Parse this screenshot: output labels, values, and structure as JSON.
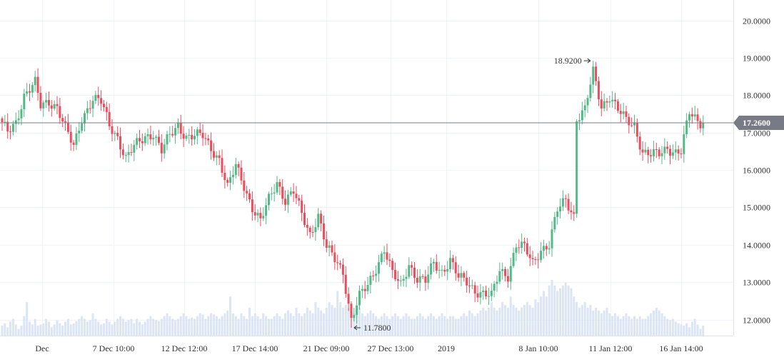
{
  "chart_data": {
    "type": "candlestick",
    "title": "",
    "ylim": [
      11.65,
      20.45
    ],
    "y_ticks": [
      "20.0000",
      "19.0000",
      "18.0000",
      "17.0000",
      "16.0000",
      "15.0000",
      "14.0000",
      "13.0000",
      "12.0000"
    ],
    "x_ticks": [
      "Dec",
      "7 Dec 10:00",
      "12 Dec 12:00",
      "17 Dec 14:00",
      "21 Dec 09:00",
      "27 Dec 13:00",
      "2019",
      "8 Jan 10:00",
      "11 Jan 12:00",
      "16 Jan 14:00"
    ],
    "last_price": 17.26,
    "last_price_label": "17.2600",
    "high_marker": {
      "value": 18.92,
      "label": "18.9200"
    },
    "low_marker": {
      "value": 11.78,
      "label": "11.7800"
    },
    "anchors": [
      [
        0,
        17.2
      ],
      [
        2,
        17.0
      ],
      [
        5,
        17.3
      ],
      [
        8,
        18.0
      ],
      [
        12,
        18.3
      ],
      [
        14,
        17.7
      ],
      [
        17,
        17.85
      ],
      [
        20,
        17.7
      ],
      [
        23,
        17.1
      ],
      [
        26,
        16.6
      ],
      [
        29,
        17.4
      ],
      [
        33,
        17.9
      ],
      [
        36,
        17.8
      ],
      [
        39,
        17.2
      ],
      [
        42,
        16.9
      ],
      [
        45,
        16.3
      ],
      [
        48,
        16.6
      ],
      [
        52,
        16.9
      ],
      [
        55,
        17.0
      ],
      [
        58,
        16.5
      ],
      [
        61,
        16.9
      ],
      [
        64,
        17.2
      ],
      [
        67,
        16.9
      ],
      [
        70,
        16.9
      ],
      [
        73,
        16.9
      ],
      [
        76,
        16.6
      ],
      [
        79,
        16.3
      ],
      [
        82,
        15.5
      ],
      [
        85,
        16.1
      ],
      [
        88,
        15.6
      ],
      [
        91,
        15.0
      ],
      [
        94,
        14.6
      ],
      [
        97,
        15.2
      ],
      [
        100,
        15.7
      ],
      [
        103,
        15.2
      ],
      [
        106,
        15.4
      ],
      [
        109,
        14.8
      ],
      [
        112,
        14.3
      ],
      [
        115,
        14.8
      ],
      [
        118,
        13.9
      ],
      [
        121,
        13.6
      ],
      [
        124,
        13.3
      ],
      [
        127,
        12.0
      ],
      [
        130,
        12.6
      ],
      [
        133,
        12.9
      ],
      [
        136,
        13.4
      ],
      [
        139,
        13.9
      ],
      [
        142,
        13.2
      ],
      [
        145,
        12.9
      ],
      [
        148,
        13.5
      ],
      [
        151,
        13.1
      ],
      [
        154,
        13.0
      ],
      [
        157,
        13.5
      ],
      [
        160,
        13.3
      ],
      [
        163,
        13.6
      ],
      [
        166,
        13.1
      ],
      [
        169,
        13.0
      ],
      [
        172,
        12.8
      ],
      [
        175,
        12.7
      ],
      [
        178,
        12.6
      ],
      [
        181,
        13.3
      ],
      [
        184,
        13.2
      ],
      [
        187,
        14.0
      ],
      [
        190,
        13.9
      ],
      [
        193,
        13.5
      ],
      [
        196,
        13.9
      ],
      [
        199,
        14.0
      ],
      [
        202,
        14.9
      ],
      [
        205,
        15.2
      ],
      [
        208,
        14.8
      ],
      [
        209,
        17.4
      ],
      [
        212,
        17.6
      ],
      [
        215,
        18.6
      ],
      [
        218,
        17.7
      ],
      [
        221,
        18.0
      ],
      [
        224,
        17.6
      ],
      [
        227,
        17.3
      ],
      [
        230,
        17.2
      ],
      [
        233,
        16.5
      ],
      [
        236,
        16.4
      ],
      [
        239,
        16.4
      ],
      [
        242,
        16.6
      ],
      [
        245,
        16.5
      ],
      [
        247,
        16.5
      ],
      [
        250,
        17.5
      ],
      [
        253,
        17.3
      ],
      [
        255,
        17.26
      ]
    ],
    "volume_max": 1.0,
    "volume_levels": [
      0.18,
      0.22,
      0.15,
      0.25,
      0.3,
      0.2,
      0.12,
      0.18,
      0.35,
      0.6,
      0.25,
      0.2,
      0.3,
      0.18,
      0.2,
      0.22,
      0.3,
      0.25,
      0.15,
      0.2,
      0.28,
      0.22,
      0.18,
      0.25,
      0.3,
      0.2,
      0.22,
      0.26,
      0.3,
      0.35,
      0.3,
      0.25,
      0.28,
      0.4,
      0.3,
      0.25,
      0.2,
      0.22,
      0.3,
      0.25,
      0.2,
      0.25,
      0.3,
      0.35,
      0.3,
      0.25,
      0.28,
      0.3,
      0.22,
      0.3,
      0.25,
      0.2,
      0.25,
      0.3,
      0.35,
      0.3,
      0.28,
      0.26,
      0.3,
      0.35,
      0.4,
      0.35,
      0.3,
      0.28,
      0.3,
      0.35,
      0.4,
      0.35,
      0.3,
      0.32,
      0.3,
      0.35,
      0.4,
      0.38,
      0.3,
      0.35,
      0.4,
      0.38,
      0.35,
      0.3,
      0.35,
      0.4,
      0.45,
      0.7,
      0.4,
      0.35,
      0.3,
      0.4,
      0.35,
      0.3,
      0.5,
      0.35,
      0.4,
      0.35,
      0.3,
      0.4,
      0.35,
      0.3,
      0.3,
      0.35,
      0.4,
      0.35,
      0.3,
      0.4,
      0.45,
      0.4,
      0.35,
      0.5,
      0.4,
      0.35,
      0.4,
      0.5,
      0.45,
      0.4,
      0.6,
      0.5,
      0.45,
      0.4,
      0.5,
      0.6,
      0.55,
      0.5,
      0.8,
      0.6,
      0.5,
      0.55,
      0.5,
      0.45,
      0.4,
      0.45,
      0.5,
      0.4,
      0.35,
      0.4,
      0.45,
      0.4,
      0.35,
      0.3,
      0.35,
      0.4,
      0.35,
      0.3,
      0.35,
      0.4,
      0.35,
      0.3,
      0.35,
      0.4,
      0.35,
      0.3,
      0.3,
      0.35,
      0.4,
      0.35,
      0.3,
      0.35,
      0.4,
      0.35,
      0.3,
      0.35,
      0.4,
      0.35,
      0.3,
      0.35,
      0.35,
      0.3,
      0.3,
      0.35,
      0.4,
      0.35,
      0.45,
      0.4,
      0.35,
      0.4,
      0.45,
      0.5,
      0.45,
      0.5,
      0.6,
      0.5,
      0.45,
      0.5,
      0.6,
      0.55,
      0.5,
      0.7,
      0.55,
      0.5,
      0.45,
      0.5,
      0.55,
      0.6,
      0.55,
      0.5,
      0.65,
      0.6,
      0.7,
      0.8,
      0.7,
      0.9,
      1.0,
      0.9,
      0.8,
      0.85,
      0.9,
      0.95,
      0.9,
      0.85,
      0.7,
      0.6,
      0.5,
      0.55,
      0.6,
      0.5,
      0.55,
      0.45,
      0.5,
      0.45,
      0.4,
      0.45,
      0.5,
      0.4,
      0.35,
      0.4,
      0.35,
      0.3,
      0.35,
      0.4,
      0.35,
      0.3,
      0.35,
      0.3,
      0.35,
      0.3,
      0.3,
      0.35,
      0.4,
      0.45,
      0.5,
      0.45,
      0.4,
      0.35,
      0.3,
      0.28,
      0.3,
      0.25,
      0.22,
      0.2
    ]
  }
}
